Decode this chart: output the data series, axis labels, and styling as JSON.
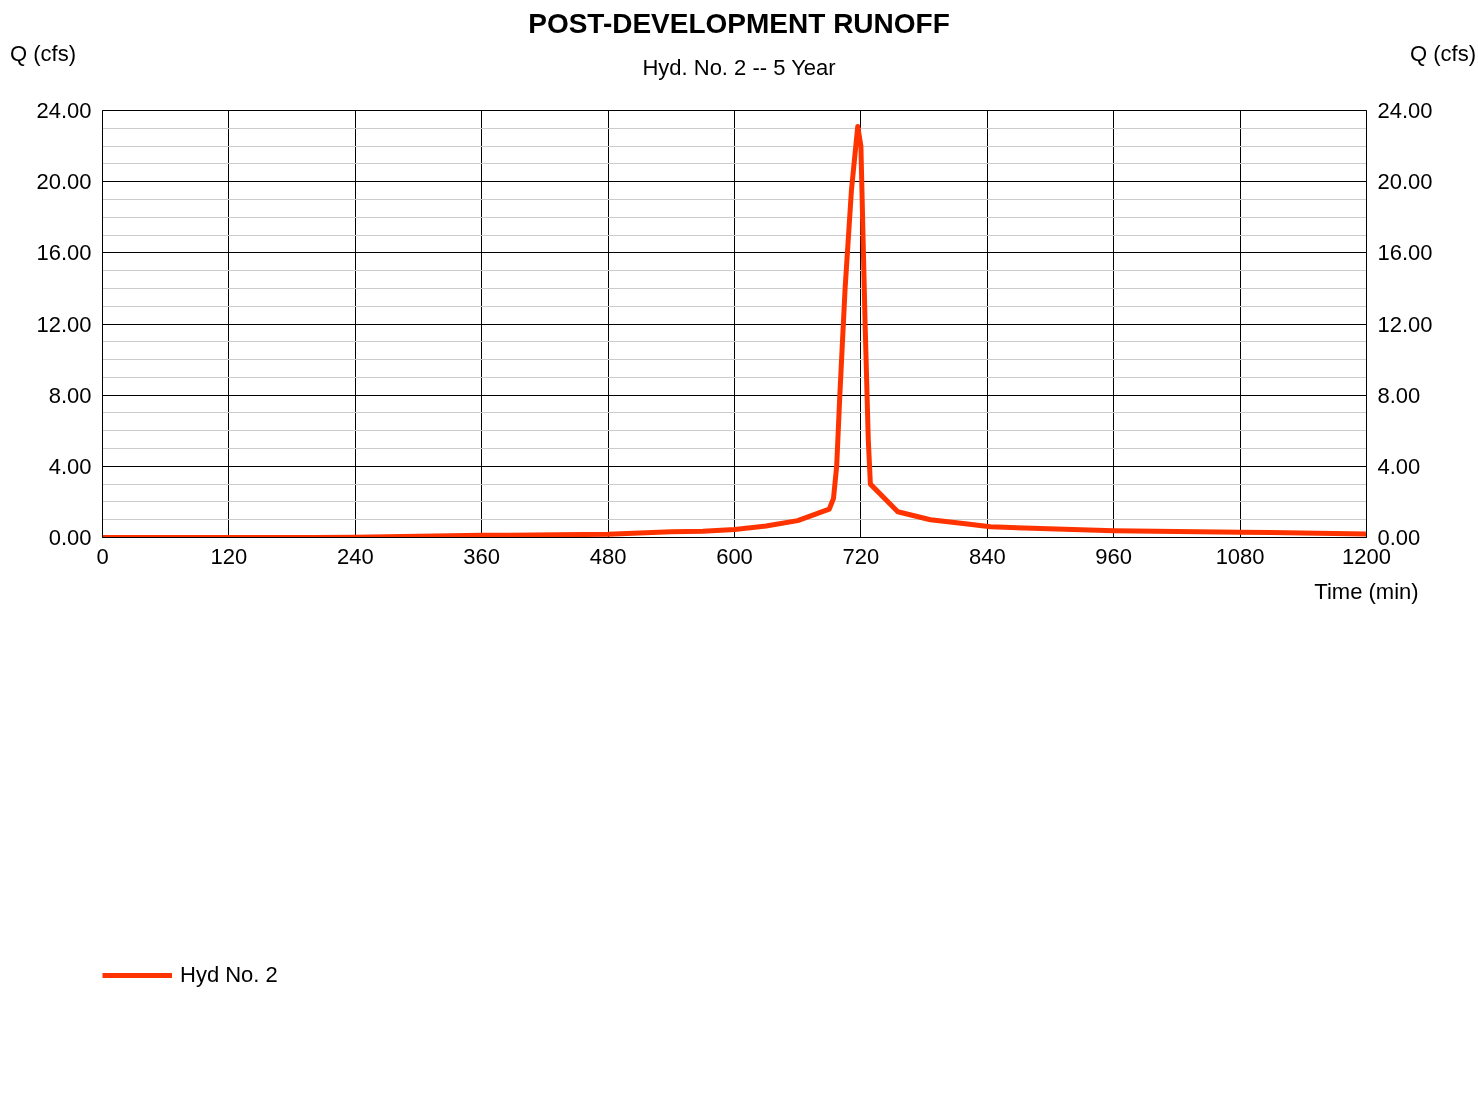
{
  "chart_data": {
    "type": "line",
    "title": "POST-DEVELOPMENT RUNOFF",
    "subtitle": "Hyd. No. 2 -- 5 Year",
    "xlabel": "Time (min)",
    "ylabel": "Q (cfs)",
    "y2label": "Q (cfs)",
    "x": [
      0,
      200,
      240,
      360,
      480,
      540,
      570,
      600,
      630,
      660,
      690,
      694,
      697,
      700,
      705,
      711,
      717,
      720,
      724,
      727,
      729,
      755,
      786,
      815,
      843,
      960,
      1080,
      1200
    ],
    "series": [
      {
        "name": "Hyd No. 2",
        "color": "#ff3300",
        "values": [
          0,
          0,
          0.02,
          0.12,
          0.18,
          0.32,
          0.35,
          0.45,
          0.65,
          0.95,
          1.6,
          2.2,
          4.0,
          8.0,
          14.0,
          19.5,
          23.1,
          22.0,
          12.0,
          5.5,
          3.0,
          1.45,
          1.0,
          0.8,
          0.6,
          0.38,
          0.3,
          0.2
        ]
      }
    ],
    "xlim": [
      0,
      1200
    ],
    "xticks": [
      0,
      120,
      240,
      360,
      480,
      600,
      720,
      840,
      960,
      1080,
      1200
    ],
    "ylim": [
      0,
      24
    ],
    "yticks": [
      {
        "value": 0,
        "label": "0.00"
      },
      {
        "value": 4,
        "label": "4.00"
      },
      {
        "value": 8,
        "label": "8.00"
      },
      {
        "value": 12,
        "label": "12.00"
      },
      {
        "value": 16,
        "label": "16.00"
      },
      {
        "value": 20,
        "label": "20.00"
      },
      {
        "value": 24,
        "label": "24.00"
      }
    ],
    "y2lim": [
      0,
      24
    ],
    "y2ticks": [
      {
        "value": 0,
        "label": "0.00"
      },
      {
        "value": 4,
        "label": "4.00"
      },
      {
        "value": 8,
        "label": "8.00"
      },
      {
        "value": 12,
        "label": "12.00"
      },
      {
        "value": 16,
        "label": "16.00"
      },
      {
        "value": 20,
        "label": "20.00"
      },
      {
        "value": 24,
        "label": "24.00"
      }
    ],
    "grid": true,
    "legend": "bottom left",
    "marker": "none",
    "line_style": "solid"
  }
}
